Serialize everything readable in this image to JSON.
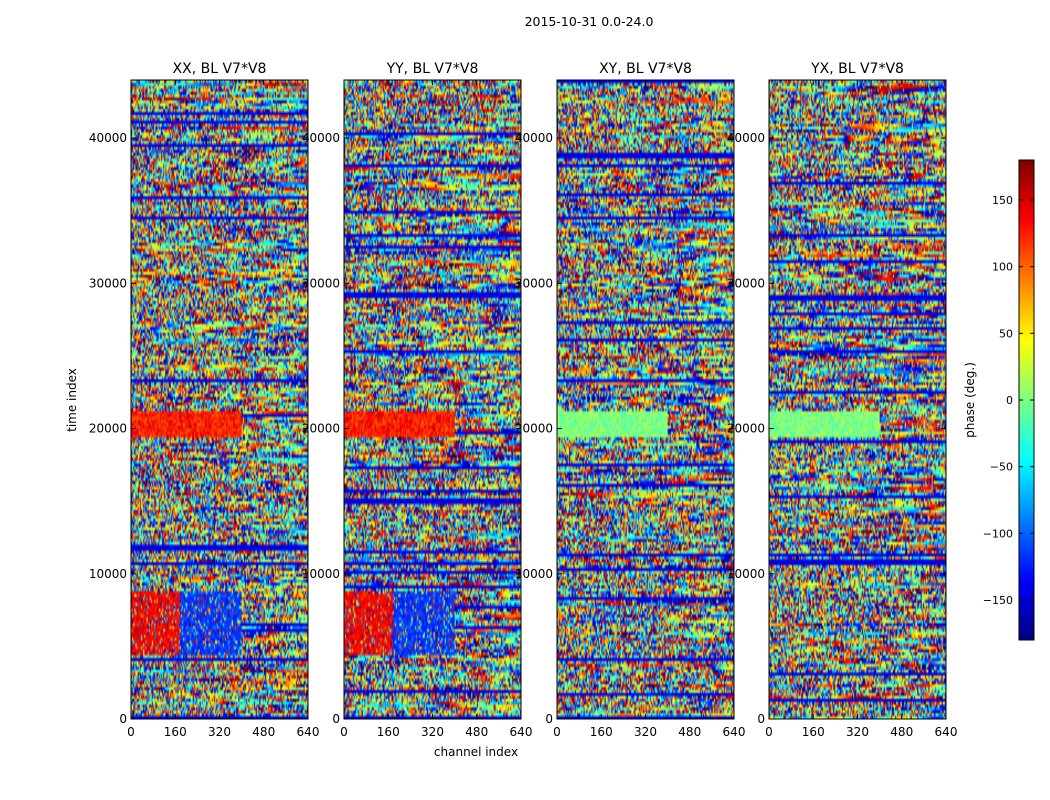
{
  "suptitle": "2015-10-31 0.0-24.0",
  "chart_data": {
    "type": "heatmap",
    "xlabel": "channel index",
    "ylabel": "time index",
    "xlim": [
      0,
      640
    ],
    "ylim": [
      0,
      44000
    ],
    "x_ticks": [
      0,
      160,
      320,
      480,
      640
    ],
    "y_ticks": [
      0,
      10000,
      20000,
      30000,
      40000
    ],
    "colorbar": {
      "label": "phase (deg.)",
      "range": [
        -180,
        180
      ],
      "ticks": [
        150,
        100,
        50,
        0,
        -50,
        -100,
        -150
      ],
      "tick_labels": [
        "150",
        "100",
        "50",
        "0",
        "−50",
        "−100",
        "−150"
      ],
      "colormap": "jet",
      "colors": [
        "#00007f",
        "#0000ff",
        "#007fff",
        "#00ffff",
        "#7fff7f",
        "#ffff00",
        "#ff7f00",
        "#ff0000",
        "#7f0000"
      ]
    },
    "panels": [
      {
        "title": "XX, BL V7*V8",
        "seed": 11,
        "strong_low_time_blocks": true
      },
      {
        "title": "YY, BL V7*V8",
        "seed": 23,
        "strong_low_time_blocks": true
      },
      {
        "title": "XY, BL V7*V8",
        "seed": 37,
        "strong_low_time_blocks": false
      },
      {
        "title": "YX, BL V7*V8",
        "seed": 53,
        "strong_low_time_blocks": false
      }
    ]
  }
}
